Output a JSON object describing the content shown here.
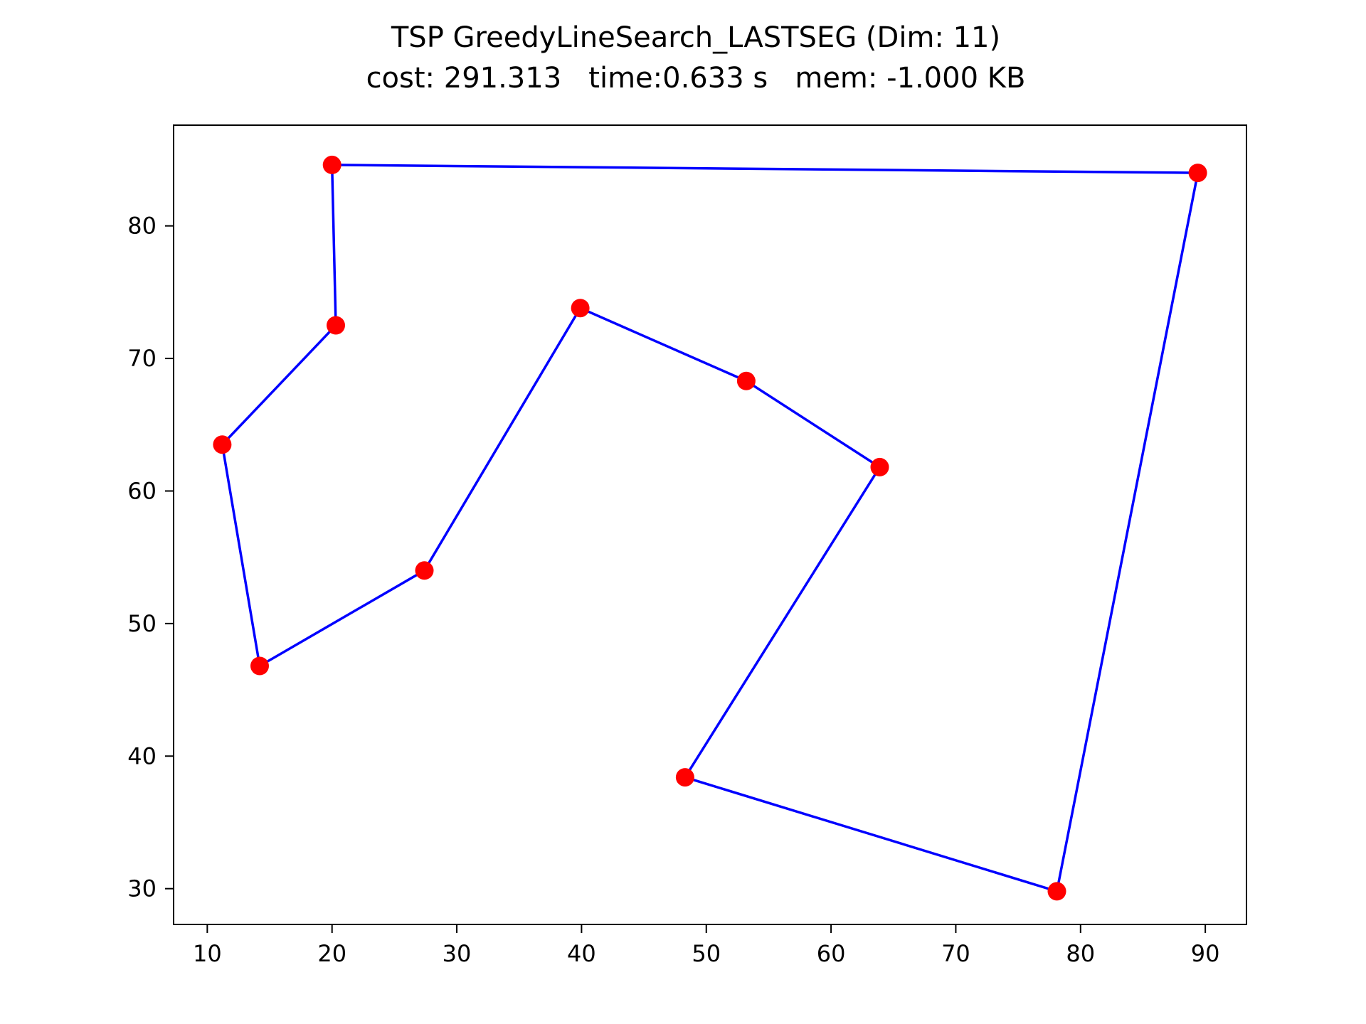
{
  "chart_data": {
    "type": "scatter",
    "title": "TSP GreedyLineSearch_LASTSEG (Dim: 11)",
    "subtitle": "cost: 291.313   time:0.633 s   mem: -1.000 KB",
    "xlabel": "",
    "ylabel": "",
    "xlim": [
      7.3,
      93.3
    ],
    "ylim": [
      27.3,
      87.6
    ],
    "xticks": [
      10,
      20,
      30,
      40,
      50,
      60,
      70,
      80,
      90
    ],
    "yticks": [
      30,
      40,
      50,
      60,
      70,
      80
    ],
    "grid": false,
    "series": [
      {
        "marker": "point",
        "color": "#ff0000",
        "points": [
          {
            "x": 20.0,
            "y": 84.6
          },
          {
            "x": 89.4,
            "y": 84.0
          },
          {
            "x": 78.1,
            "y": 29.8
          },
          {
            "x": 48.3,
            "y": 38.4
          },
          {
            "x": 63.9,
            "y": 61.8
          },
          {
            "x": 53.2,
            "y": 68.3
          },
          {
            "x": 39.9,
            "y": 73.8
          },
          {
            "x": 27.4,
            "y": 54.0
          },
          {
            "x": 14.2,
            "y": 46.8
          },
          {
            "x": 11.2,
            "y": 63.5
          },
          {
            "x": 20.3,
            "y": 72.5
          }
        ]
      },
      {
        "marker": "line",
        "color": "#0000ff",
        "closed": true,
        "points": [
          {
            "x": 20.0,
            "y": 84.6
          },
          {
            "x": 89.4,
            "y": 84.0
          },
          {
            "x": 78.1,
            "y": 29.8
          },
          {
            "x": 48.3,
            "y": 38.4
          },
          {
            "x": 63.9,
            "y": 61.8
          },
          {
            "x": 53.2,
            "y": 68.3
          },
          {
            "x": 39.9,
            "y": 73.8
          },
          {
            "x": 27.4,
            "y": 54.0
          },
          {
            "x": 14.2,
            "y": 46.8
          },
          {
            "x": 11.2,
            "y": 63.5
          },
          {
            "x": 20.3,
            "y": 72.5
          }
        ]
      }
    ]
  }
}
